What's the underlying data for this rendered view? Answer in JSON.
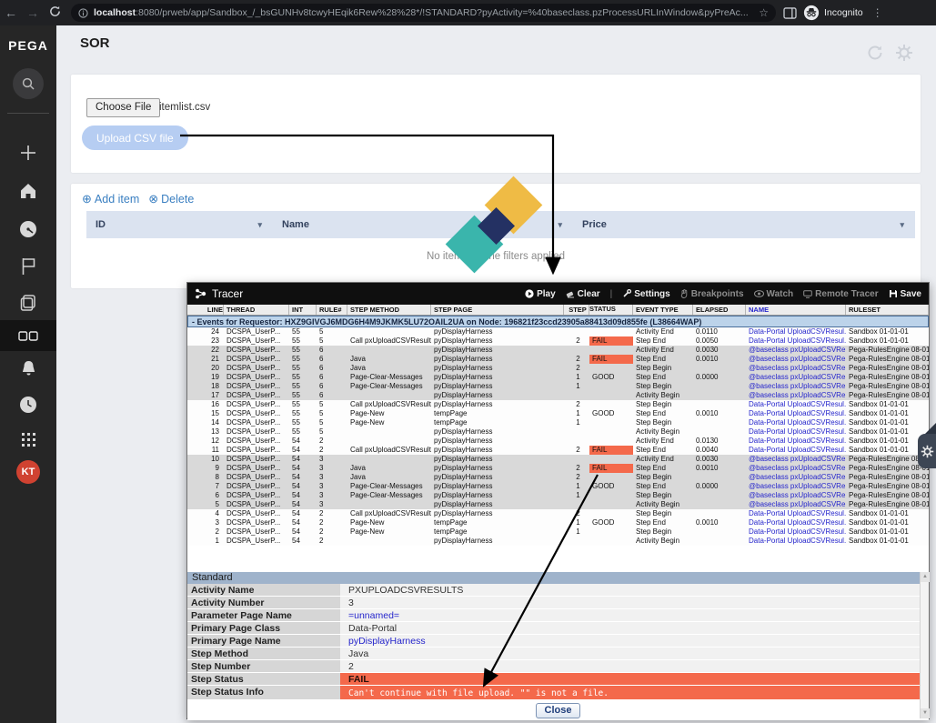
{
  "browser": {
    "url_host": "localhost",
    "url_rest": ":8080/prweb/app/Sandbox_/_bsGUNHv8tcwyHEqik6Rew%28%28*/!STANDARD?pyActivity=%40baseclass.pzProcessURLInWindow&pyPreAc...",
    "incognito_label": "Incognito"
  },
  "sidebar": {
    "logo": "PEGA",
    "avatar_initials": "KT"
  },
  "page": {
    "title": "SOR"
  },
  "upload_card": {
    "choose_file": "Choose File",
    "filename": "itemlist.csv",
    "upload_button": "Upload CSV file"
  },
  "items_card": {
    "add_item": "Add item",
    "delete": "Delete",
    "columns": [
      "ID",
      "Name",
      "Price"
    ],
    "empty_text": "No items for the filters applied"
  },
  "tracer": {
    "title": "Tracer",
    "toolbar": [
      {
        "label": "Play",
        "icon": "play-icon",
        "enabled": true
      },
      {
        "label": "Clear",
        "icon": "eraser-icon",
        "enabled": true
      },
      {
        "label": "Settings",
        "icon": "wrench-icon",
        "enabled": true
      },
      {
        "label": "Breakpoints",
        "icon": "hand-icon",
        "enabled": false
      },
      {
        "label": "Watch",
        "icon": "eye-icon",
        "enabled": false
      },
      {
        "label": "Remote Tracer",
        "icon": "monitor-icon",
        "enabled": false
      },
      {
        "label": "Save",
        "icon": "save-icon",
        "enabled": true
      }
    ],
    "columns": [
      "LINE",
      "THREAD",
      "INT",
      "RULE#",
      "STEP METHOD",
      "STEP PAGE",
      "STEP",
      "STATUS",
      "EVENT TYPE",
      "ELAPSED",
      "NAME",
      "RULESET"
    ],
    "requestor_banner": "- Events for Requestor: HXZ9GIVGJ6MDG6H4M9JKMK5LU72OAIL2UA on Node: 196821f23ccd23905a88413d09d855fe (L38664WAP)",
    "rows": [
      {
        "line": "24",
        "thread": "DCSPA_UserP...",
        "int": "55",
        "rule": "5",
        "method": "",
        "page": "pyDisplayHarness",
        "step": "",
        "status": "",
        "event": "Activity End",
        "elapsed": "0.0110",
        "name": "Data-Portal UploadCSVResul...",
        "ruleset": "Sandbox 01-01-01",
        "group": "sandbox"
      },
      {
        "line": "23",
        "thread": "DCSPA_UserP...",
        "int": "55",
        "rule": "5",
        "method": "Call pxUploadCSVResults",
        "page": "pyDisplayHarness",
        "step": "2",
        "status": "FAIL",
        "event": "Step End",
        "elapsed": "0.0050",
        "name": "Data-Portal UploadCSVResul...",
        "ruleset": "Sandbox 01-01-01",
        "group": "sandbox"
      },
      {
        "line": "22",
        "thread": "DCSPA_UserP...",
        "int": "55",
        "rule": "6",
        "method": "",
        "page": "pyDisplayHarness",
        "step": "",
        "status": "",
        "event": "Activity End",
        "elapsed": "0.0030",
        "name": "@baseclass pxUploadCSVRe...",
        "ruleset": "Pega-RulesEngine 08-01-01",
        "group": "engine"
      },
      {
        "line": "21",
        "thread": "DCSPA_UserP...",
        "int": "55",
        "rule": "6",
        "method": "Java",
        "page": "pyDisplayHarness",
        "step": "2",
        "status": "FAIL",
        "event": "Step End",
        "elapsed": "0.0010",
        "name": "@baseclass pxUploadCSVRe...",
        "ruleset": "Pega-RulesEngine 08-01-01",
        "group": "engine"
      },
      {
        "line": "20",
        "thread": "DCSPA_UserP...",
        "int": "55",
        "rule": "6",
        "method": "Java",
        "page": "pyDisplayHarness",
        "step": "2",
        "status": "",
        "event": "Step Begin",
        "elapsed": "",
        "name": "@baseclass pxUploadCSVRe...",
        "ruleset": "Pega-RulesEngine 08-01-01",
        "group": "engine"
      },
      {
        "line": "19",
        "thread": "DCSPA_UserP...",
        "int": "55",
        "rule": "6",
        "method": "Page-Clear-Messages",
        "page": "pyDisplayHarness",
        "step": "1",
        "status": "GOOD",
        "event": "Step End",
        "elapsed": "0.0000",
        "name": "@baseclass pxUploadCSVRe...",
        "ruleset": "Pega-RulesEngine 08-01-01",
        "group": "engine"
      },
      {
        "line": "18",
        "thread": "DCSPA_UserP...",
        "int": "55",
        "rule": "6",
        "method": "Page-Clear-Messages",
        "page": "pyDisplayHarness",
        "step": "1",
        "status": "",
        "event": "Step Begin",
        "elapsed": "",
        "name": "@baseclass pxUploadCSVRe...",
        "ruleset": "Pega-RulesEngine 08-01-01",
        "group": "engine"
      },
      {
        "line": "17",
        "thread": "DCSPA_UserP...",
        "int": "55",
        "rule": "6",
        "method": "",
        "page": "pyDisplayHarness",
        "step": "",
        "status": "",
        "event": "Activity Begin",
        "elapsed": "",
        "name": "@baseclass pxUploadCSVRe...",
        "ruleset": "Pega-RulesEngine 08-01-01",
        "group": "engine"
      },
      {
        "line": "16",
        "thread": "DCSPA_UserP...",
        "int": "55",
        "rule": "5",
        "method": "Call pxUploadCSVResults",
        "page": "pyDisplayHarness",
        "step": "2",
        "status": "",
        "event": "Step Begin",
        "elapsed": "",
        "name": "Data-Portal UploadCSVResul...",
        "ruleset": "Sandbox 01-01-01",
        "group": "sandbox"
      },
      {
        "line": "15",
        "thread": "DCSPA_UserP...",
        "int": "55",
        "rule": "5",
        "method": "Page-New",
        "page": "tempPage",
        "step": "1",
        "status": "GOOD",
        "event": "Step End",
        "elapsed": "0.0010",
        "name": "Data-Portal UploadCSVResul...",
        "ruleset": "Sandbox 01-01-01",
        "group": "sandbox"
      },
      {
        "line": "14",
        "thread": "DCSPA_UserP...",
        "int": "55",
        "rule": "5",
        "method": "Page-New",
        "page": "tempPage",
        "step": "1",
        "status": "",
        "event": "Step Begin",
        "elapsed": "",
        "name": "Data-Portal UploadCSVResul...",
        "ruleset": "Sandbox 01-01-01",
        "group": "sandbox"
      },
      {
        "line": "13",
        "thread": "DCSPA_UserP...",
        "int": "55",
        "rule": "5",
        "method": "",
        "page": "pyDisplayHarness",
        "step": "",
        "status": "",
        "event": "Activity Begin",
        "elapsed": "",
        "name": "Data-Portal UploadCSVResul...",
        "ruleset": "Sandbox 01-01-01",
        "group": "sandbox"
      },
      {
        "line": "12",
        "thread": "DCSPA_UserP...",
        "int": "54",
        "rule": "2",
        "method": "",
        "page": "pyDisplayHarness",
        "step": "",
        "status": "",
        "event": "Activity End",
        "elapsed": "0.0130",
        "name": "Data-Portal UploadCSVResul...",
        "ruleset": "Sandbox 01-01-01",
        "group": "sandbox"
      },
      {
        "line": "11",
        "thread": "DCSPA_UserP...",
        "int": "54",
        "rule": "2",
        "method": "Call pxUploadCSVResults",
        "page": "pyDisplayHarness",
        "step": "2",
        "status": "FAIL",
        "event": "Step End",
        "elapsed": "0.0040",
        "name": "Data-Portal UploadCSVResul...",
        "ruleset": "Sandbox 01-01-01",
        "group": "sandbox"
      },
      {
        "line": "10",
        "thread": "DCSPA_UserP...",
        "int": "54",
        "rule": "3",
        "method": "",
        "page": "pyDisplayHarness",
        "step": "",
        "status": "",
        "event": "Activity End",
        "elapsed": "0.0030",
        "name": "@baseclass pxUploadCSVRe...",
        "ruleset": "Pega-RulesEngine 08-01-01",
        "group": "engine"
      },
      {
        "line": "9",
        "thread": "DCSPA_UserP...",
        "int": "54",
        "rule": "3",
        "method": "Java",
        "page": "pyDisplayHarness",
        "step": "2",
        "status": "FAIL",
        "event": "Step End",
        "elapsed": "0.0010",
        "name": "@baseclass pxUploadCSVRe...",
        "ruleset": "Pega-RulesEngine 08-01-01",
        "group": "engine"
      },
      {
        "line": "8",
        "thread": "DCSPA_UserP...",
        "int": "54",
        "rule": "3",
        "method": "Java",
        "page": "pyDisplayHarness",
        "step": "2",
        "status": "",
        "event": "Step Begin",
        "elapsed": "",
        "name": "@baseclass pxUploadCSVRe...",
        "ruleset": "Pega-RulesEngine 08-01-01",
        "group": "engine"
      },
      {
        "line": "7",
        "thread": "DCSPA_UserP...",
        "int": "54",
        "rule": "3",
        "method": "Page-Clear-Messages",
        "page": "pyDisplayHarness",
        "step": "1",
        "status": "GOOD",
        "event": "Step End",
        "elapsed": "0.0000",
        "name": "@baseclass pxUploadCSVRe...",
        "ruleset": "Pega-RulesEngine 08-01-01",
        "group": "engine"
      },
      {
        "line": "6",
        "thread": "DCSPA_UserP...",
        "int": "54",
        "rule": "3",
        "method": "Page-Clear-Messages",
        "page": "pyDisplayHarness",
        "step": "1",
        "status": "",
        "event": "Step Begin",
        "elapsed": "",
        "name": "@baseclass pxUploadCSVRe...",
        "ruleset": "Pega-RulesEngine 08-01-01",
        "group": "engine"
      },
      {
        "line": "5",
        "thread": "DCSPA_UserP...",
        "int": "54",
        "rule": "3",
        "method": "",
        "page": "pyDisplayHarness",
        "step": "",
        "status": "",
        "event": "Activity Begin",
        "elapsed": "",
        "name": "@baseclass pxUploadCSVRe...",
        "ruleset": "Pega-RulesEngine 08-01-01",
        "group": "engine"
      },
      {
        "line": "4",
        "thread": "DCSPA_UserP...",
        "int": "54",
        "rule": "2",
        "method": "Call pxUploadCSVResults",
        "page": "pyDisplayHarness",
        "step": "2",
        "status": "",
        "event": "Step Begin",
        "elapsed": "",
        "name": "Data-Portal UploadCSVResul...",
        "ruleset": "Sandbox 01-01-01",
        "group": "sandbox"
      },
      {
        "line": "3",
        "thread": "DCSPA_UserP...",
        "int": "54",
        "rule": "2",
        "method": "Page-New",
        "page": "tempPage",
        "step": "1",
        "status": "GOOD",
        "event": "Step End",
        "elapsed": "0.0010",
        "name": "Data-Portal UploadCSVResul...",
        "ruleset": "Sandbox 01-01-01",
        "group": "sandbox"
      },
      {
        "line": "2",
        "thread": "DCSPA_UserP...",
        "int": "54",
        "rule": "2",
        "method": "Page-New",
        "page": "tempPage",
        "step": "1",
        "status": "",
        "event": "Step Begin",
        "elapsed": "",
        "name": "Data-Portal UploadCSVResul...",
        "ruleset": "Sandbox 01-01-01",
        "group": "sandbox"
      },
      {
        "line": "1",
        "thread": "DCSPA_UserP...",
        "int": "54",
        "rule": "2",
        "method": "",
        "page": "pyDisplayHarness",
        "step": "",
        "status": "",
        "event": "Activity Begin",
        "elapsed": "",
        "name": "Data-Portal UploadCSVResul...",
        "ruleset": "Sandbox 01-01-01",
        "group": "sandbox"
      }
    ]
  },
  "properties": {
    "header": "Standard",
    "rows": [
      {
        "label": "Activity Name",
        "value": "PXUPLOADCSVRESULTS",
        "type": "text"
      },
      {
        "label": "Activity Number",
        "value": "3",
        "type": "text"
      },
      {
        "label": "Parameter Page Name",
        "value": "=unnamed=",
        "type": "link"
      },
      {
        "label": "Primary Page Class",
        "value": "Data-Portal",
        "type": "text"
      },
      {
        "label": "Primary Page Name",
        "value": "pyDisplayHarness",
        "type": "link"
      },
      {
        "label": "Step Method",
        "value": "Java",
        "type": "text"
      },
      {
        "label": "Step Number",
        "value": "2",
        "type": "text"
      },
      {
        "label": "Step Status",
        "value": "FAIL",
        "type": "fail"
      },
      {
        "label": "Step Status Info",
        "value": "Can't continue with file upload. \"\" is not a file.",
        "type": "fail-mono"
      }
    ],
    "close_button": "Close"
  },
  "colors": {
    "fail": "#f4694b",
    "link": "#2525cc",
    "engine_row_bg": "#d9d9d9",
    "events_banner_bg": "#bcd3ea",
    "standard_header_bg": "#9fb3cb",
    "upload_button_bg": "#b6cdf2",
    "action_link": "#3a7fc1",
    "pega_yellow": "#efbb45",
    "pega_teal": "#3ab5ac",
    "pega_navy": "#243163"
  }
}
